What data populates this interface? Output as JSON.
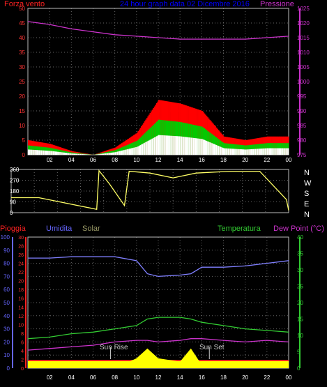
{
  "header": {
    "title": "24 hour graph data 02 Dicembre 2016",
    "left_label": "Forza vento",
    "right_label": "Pressione"
  },
  "wind_dir_labels": [
    "N",
    "W",
    "S",
    "E",
    "N"
  ],
  "bottom_labels": {
    "rain": "Pioggia",
    "humidity": "Umidita",
    "solar": "Solar",
    "temperature": "Temperatura",
    "dewpoint": "Dew Point (°C)",
    "sunrise": "Sun Rise",
    "sunset": "Sun Set"
  },
  "colors": {
    "wind_gust": "#ff0000",
    "wind_avg": "#00cc00",
    "wind_low": "#ffffff",
    "pressure": "#cc33cc",
    "direction": "#ffff66",
    "humidity": "#8080ff",
    "temperature": "#33cc33",
    "dewpoint": "#cc33cc",
    "solar": "#ffff00",
    "rain": "#ff2222",
    "axis_purple": "#cc33cc",
    "axis_blue": "#6666ff",
    "axis_green": "#33cc33",
    "title_blue": "#0000ff",
    "grid": "#666666"
  },
  "chart_data": [
    {
      "type": "line",
      "title": "24 hour graph data 02 Dicembre 2016",
      "x_ticks": [
        "02",
        "04",
        "06",
        "08",
        "10",
        "12",
        "14",
        "16",
        "18",
        "20",
        "22",
        "00"
      ],
      "left_axis": {
        "label": "Forza vento",
        "ticks": [
          0,
          5,
          10,
          15,
          20,
          25,
          30,
          35,
          40,
          45,
          50
        ],
        "ylim": [
          0,
          50
        ]
      },
      "right_axis": {
        "label": "Pressione",
        "ticks": [
          975,
          980,
          985,
          990,
          995,
          1000,
          1005,
          1010,
          1015,
          1020,
          1025
        ],
        "ylim": [
          975,
          1025
        ]
      },
      "x_hours": [
        0,
        2,
        4,
        6,
        8,
        10,
        12,
        14,
        16,
        18,
        20,
        22,
        24
      ],
      "series": [
        {
          "name": "Forza vento",
          "axis": "left",
          "values": [
            4,
            3,
            1,
            0,
            2,
            6,
            15,
            14,
            12,
            5,
            4,
            5,
            5
          ]
        },
        {
          "name": "Pressione",
          "axis": "right",
          "values": [
            1020.5,
            1019.5,
            1018,
            1017,
            1016,
            1015.5,
            1015,
            1014.5,
            1014.5,
            1014.5,
            1014.5,
            1015,
            1015.5
          ]
        }
      ]
    },
    {
      "type": "line",
      "y_ticks": [
        0,
        90,
        180,
        270,
        360
      ],
      "ylim": [
        0,
        360
      ],
      "x_hours": [
        0,
        2.4,
        7.4,
        7.6,
        8.5,
        9.8,
        10.2,
        12,
        14,
        16,
        19,
        21.5,
        23.8,
        24
      ],
      "series": [
        {
          "name": "direction",
          "values": [
            125,
            125,
            28,
            350,
            240,
            60,
            345,
            330,
            290,
            330,
            345,
            345,
            110,
            20
          ]
        }
      ]
    },
    {
      "type": "line",
      "x_ticks": [
        "02",
        "04",
        "06",
        "08",
        "10",
        "12",
        "14",
        "16",
        "18",
        "20",
        "22",
        "00"
      ],
      "axes": {
        "rain": {
          "label": "Pioggia",
          "ticks": [
            0,
            2,
            4,
            6,
            8,
            10,
            12,
            14,
            16,
            18,
            20,
            22,
            24,
            26,
            28,
            30
          ],
          "ylim": [
            0,
            30
          ]
        },
        "humidity": {
          "label": "Umidita",
          "ticks": [
            0,
            10,
            20,
            30,
            40,
            50,
            60,
            70,
            80,
            90,
            100
          ],
          "ylim": [
            0,
            100
          ]
        },
        "temperature": {
          "label": "Temperatura",
          "ticks": [
            0,
            5,
            10,
            15,
            20,
            25,
            30,
            35,
            40
          ],
          "ylim": [
            0,
            40
          ]
        }
      },
      "x_hours": [
        0,
        2,
        4,
        6,
        8,
        10,
        11,
        12,
        14,
        15,
        16,
        18,
        20,
        22,
        24
      ],
      "series": [
        {
          "name": "Umidita",
          "axis": "humidity",
          "values": [
            84,
            84,
            85,
            85,
            85,
            82,
            72,
            70,
            71,
            72,
            77,
            77,
            78,
            80,
            82
          ]
        },
        {
          "name": "Temperatura",
          "axis": "temperature",
          "values": [
            9,
            9.5,
            10.5,
            11,
            12,
            13,
            15,
            15.5,
            15.5,
            15,
            14,
            13,
            12,
            11.5,
            11
          ]
        },
        {
          "name": "Dew Point",
          "axis": "temperature",
          "values": [
            5.5,
            6,
            6.5,
            7,
            8,
            8.5,
            8.5,
            8,
            8.5,
            9,
            9,
            8.5,
            8,
            8.5,
            8
          ]
        },
        {
          "name": "Solar",
          "axis": "temperature",
          "values": [
            0,
            0,
            0,
            0,
            0,
            3,
            6,
            3,
            2,
            6,
            1,
            0,
            0,
            0,
            0
          ]
        }
      ],
      "annotations": [
        "Sun Rise",
        "Sun Set"
      ]
    }
  ]
}
